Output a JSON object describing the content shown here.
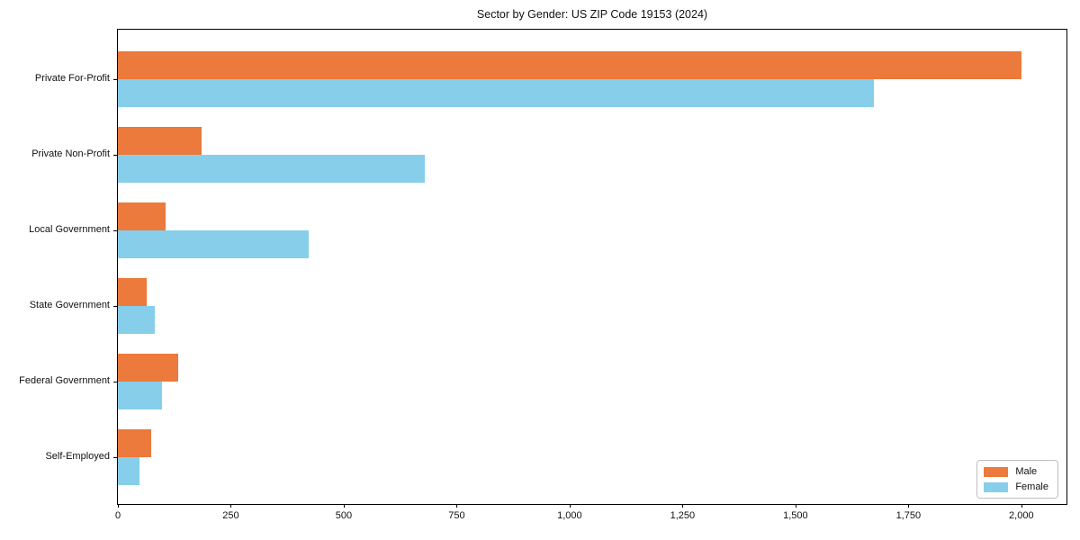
{
  "title": "Sector by Gender: US ZIP Code 19153 (2024)",
  "colors": {
    "male": "#eb7a3c",
    "female": "#87ceeb",
    "axis": "#000000",
    "text": "#111111",
    "legend_border": "#bfbfbf",
    "background": "#ffffff"
  },
  "legend": {
    "position": "lower-right",
    "items": [
      {
        "label": "Male",
        "color": "#eb7a3c"
      },
      {
        "label": "Female",
        "color": "#87ceeb"
      }
    ]
  },
  "chart_data": {
    "type": "bar",
    "orientation": "horizontal",
    "title": "Sector by Gender: US ZIP Code 19153 (2024)",
    "categories": [
      "Private For-Profit",
      "Private Non-Profit",
      "Local Government",
      "State Government",
      "Federal Government",
      "Self-Employed"
    ],
    "series": [
      {
        "name": "Male",
        "color": "#eb7a3c",
        "values": [
          2000,
          185,
          105,
          63,
          133,
          73
        ]
      },
      {
        "name": "Female",
        "color": "#87ceeb",
        "values": [
          1674,
          680,
          423,
          81,
          97,
          48
        ]
      }
    ],
    "xlabel": "",
    "ylabel": "",
    "xlim": [
      0,
      2100
    ],
    "xticks": [
      0,
      250,
      500,
      750,
      1000,
      1250,
      1500,
      1750,
      2000
    ],
    "xtick_labels": [
      "0",
      "250",
      "500",
      "750",
      "1,000",
      "1,250",
      "1,500",
      "1,750",
      "2,000"
    ],
    "grid": false,
    "legend_position": "lower right"
  }
}
